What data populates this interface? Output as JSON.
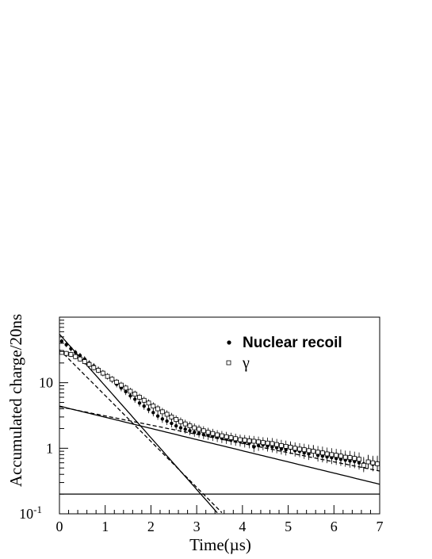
{
  "chart_data": {
    "type": "scatter",
    "title": "",
    "xlabel": "Time(µs)",
    "ylabel": "Accumulated charge/20ns",
    "xlim": [
      0,
      7
    ],
    "ylim": [
      0.1,
      100
    ],
    "yscale": "log",
    "grid": false,
    "legend_position": "top-right",
    "x_ticks": [
      "0",
      "1",
      "2",
      "3",
      "4",
      "5",
      "6",
      "7"
    ],
    "y_ticks": [
      {
        "value": 0.1,
        "base": "10",
        "exp": "-1"
      },
      {
        "value": 1,
        "base": "1",
        "exp": ""
      },
      {
        "value": 10,
        "base": "10",
        "exp": ""
      }
    ],
    "series": [
      {
        "name": "Nuclear recoil",
        "marker": "filled-circle",
        "x": [
          0.05,
          0.15,
          0.25,
          0.35,
          0.45,
          0.55,
          0.65,
          0.75,
          0.85,
          0.95,
          1.05,
          1.15,
          1.25,
          1.35,
          1.45,
          1.55,
          1.65,
          1.75,
          1.85,
          1.95,
          2.05,
          2.15,
          2.25,
          2.35,
          2.45,
          2.55,
          2.65,
          2.75,
          2.85,
          2.95,
          3.05,
          3.15,
          3.25,
          3.35,
          3.45,
          3.55,
          3.65,
          3.75,
          3.85,
          3.95,
          4.05,
          4.15,
          4.25,
          4.35,
          4.45,
          4.55,
          4.65,
          4.75,
          4.85,
          4.95,
          5.05,
          5.15,
          5.25,
          5.35,
          5.45,
          5.55,
          5.65,
          5.75,
          5.85,
          5.95,
          6.05,
          6.15,
          6.25,
          6.35,
          6.45,
          6.55,
          6.65,
          6.75,
          6.85,
          6.95
        ],
        "y": [
          43,
          38,
          33,
          29,
          26,
          23,
          20,
          18,
          16,
          14,
          12.5,
          11,
          9.5,
          8.3,
          7.3,
          6.3,
          5.6,
          4.9,
          4.4,
          3.9,
          3.5,
          3.1,
          2.8,
          2.6,
          2.4,
          2.2,
          2.05,
          1.95,
          1.85,
          1.75,
          1.7,
          1.62,
          1.58,
          1.52,
          1.47,
          1.42,
          1.38,
          1.33,
          1.3,
          1.27,
          1.23,
          1.2,
          1.05,
          1.1,
          1.13,
          1.08,
          1.05,
          1.02,
          0.98,
          0.95,
          1.0,
          0.92,
          0.9,
          0.85,
          0.82,
          0.9,
          0.78,
          0.76,
          0.74,
          0.72,
          0.7,
          0.68,
          0.66,
          0.64,
          0.63,
          0.6,
          0.58,
          0.62,
          0.57,
          0.6
        ],
        "fit": {
          "model": "two-exponential",
          "components": [
            {
              "amplitude": 55,
              "tau": 0.55
            },
            {
              "amplitude": 4.4,
              "tau": 2.55
            }
          ],
          "baseline": 0.2,
          "line": "solid"
        }
      },
      {
        "name": "γ",
        "marker": "open-square",
        "x": [
          0.05,
          0.15,
          0.25,
          0.35,
          0.45,
          0.55,
          0.65,
          0.75,
          0.85,
          0.95,
          1.05,
          1.15,
          1.25,
          1.35,
          1.45,
          1.55,
          1.65,
          1.75,
          1.85,
          1.95,
          2.05,
          2.15,
          2.25,
          2.35,
          2.45,
          2.55,
          2.65,
          2.75,
          2.85,
          2.95,
          3.05,
          3.15,
          3.25,
          3.35,
          3.45,
          3.55,
          3.65,
          3.75,
          3.85,
          3.95,
          4.05,
          4.15,
          4.25,
          4.35,
          4.45,
          4.55,
          4.65,
          4.75,
          4.85,
          4.95,
          5.05,
          5.15,
          5.25,
          5.35,
          5.45,
          5.55,
          5.65,
          5.75,
          5.85,
          5.95,
          6.05,
          6.15,
          6.25,
          6.35,
          6.45,
          6.55,
          6.65,
          6.75,
          6.85,
          6.95
        ],
        "y": [
          29,
          28,
          27,
          25,
          23,
          21,
          19,
          17,
          15.5,
          14,
          12.5,
          11.3,
          10.2,
          9.2,
          8.3,
          7.4,
          6.7,
          6.0,
          5.4,
          4.9,
          4.4,
          4.0,
          3.6,
          3.3,
          3.0,
          2.75,
          2.55,
          2.35,
          2.2,
          2.05,
          1.95,
          1.85,
          1.75,
          1.68,
          1.6,
          1.55,
          1.5,
          1.45,
          1.4,
          1.35,
          1.33,
          1.3,
          1.28,
          1.25,
          1.22,
          1.2,
          1.18,
          1.14,
          1.1,
          1.07,
          1.04,
          1.0,
          0.97,
          0.95,
          0.92,
          0.9,
          0.87,
          0.85,
          0.82,
          0.8,
          0.78,
          0.76,
          0.73,
          0.72,
          0.7,
          0.68,
          0.55,
          0.62,
          0.6,
          0.58
        ],
        "fit": {
          "model": "two-exponential",
          "components": [
            {
              "amplitude": 32,
              "tau": 0.62
            },
            {
              "amplitude": 4.3,
              "tau": 3.1
            }
          ],
          "baseline": 0.2,
          "line": "dashed"
        }
      }
    ],
    "baseline_line": {
      "y": 0.2
    }
  }
}
